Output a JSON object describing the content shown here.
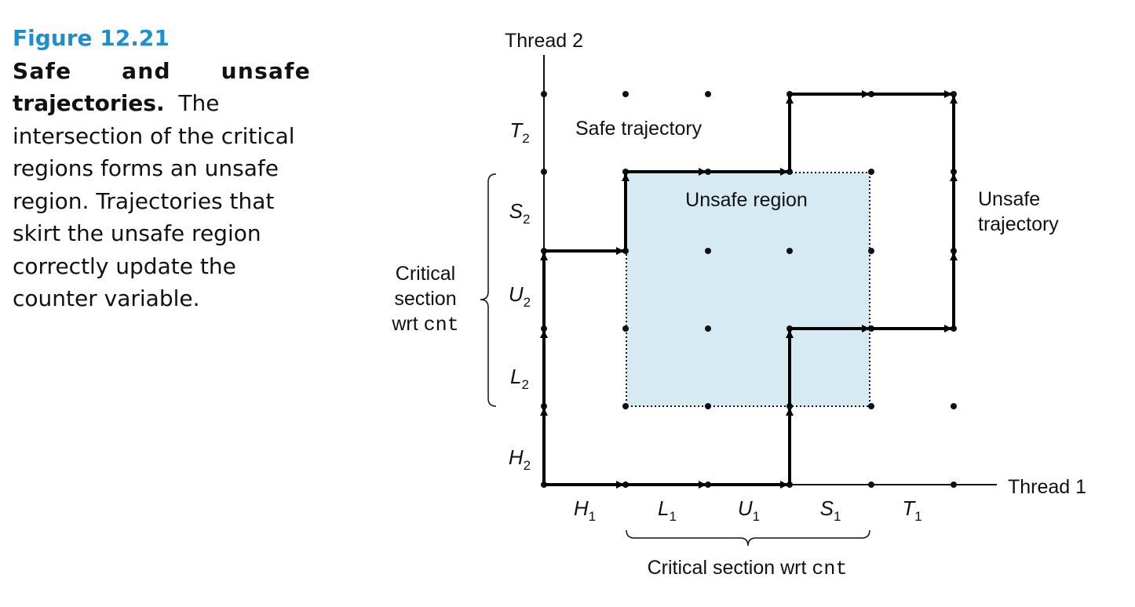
{
  "caption": {
    "figure_number": "Figure 12.21",
    "title_line1": "Safe and unsafe",
    "title_line2": "trajectories.",
    "line2_rest": "The",
    "body_lines": [
      "intersection of the critical",
      "regions forms an unsafe",
      "region. Trajectories that",
      "skirt the unsafe region",
      "correctly update the",
      "counter variable."
    ]
  },
  "diagram": {
    "y_axis_label": "Thread 2",
    "x_axis_label": "Thread 1",
    "safe_trajectory_label": "Safe trajectory",
    "unsafe_region_label": "Unsafe region",
    "unsafe_trajectory_label": [
      "Unsafe",
      "trajectory"
    ],
    "left_brace_label": [
      "Critical",
      "section",
      "wrt "
    ],
    "left_brace_code": "cnt",
    "bottom_brace_label": "Critical section wrt ",
    "bottom_brace_code": "cnt",
    "x_segments": [
      {
        "letter": "H",
        "sub": "1"
      },
      {
        "letter": "L",
        "sub": "1"
      },
      {
        "letter": "U",
        "sub": "1"
      },
      {
        "letter": "S",
        "sub": "1"
      },
      {
        "letter": "T",
        "sub": "1"
      }
    ],
    "y_segments": [
      {
        "letter": "H",
        "sub": "2"
      },
      {
        "letter": "L",
        "sub": "2"
      },
      {
        "letter": "U",
        "sub": "2"
      },
      {
        "letter": "S",
        "sub": "2"
      },
      {
        "letter": "T",
        "sub": "2"
      }
    ],
    "colors": {
      "unsafe_region_fill": "#d6eaf3",
      "figure_number": "#1b8fd0"
    }
  }
}
